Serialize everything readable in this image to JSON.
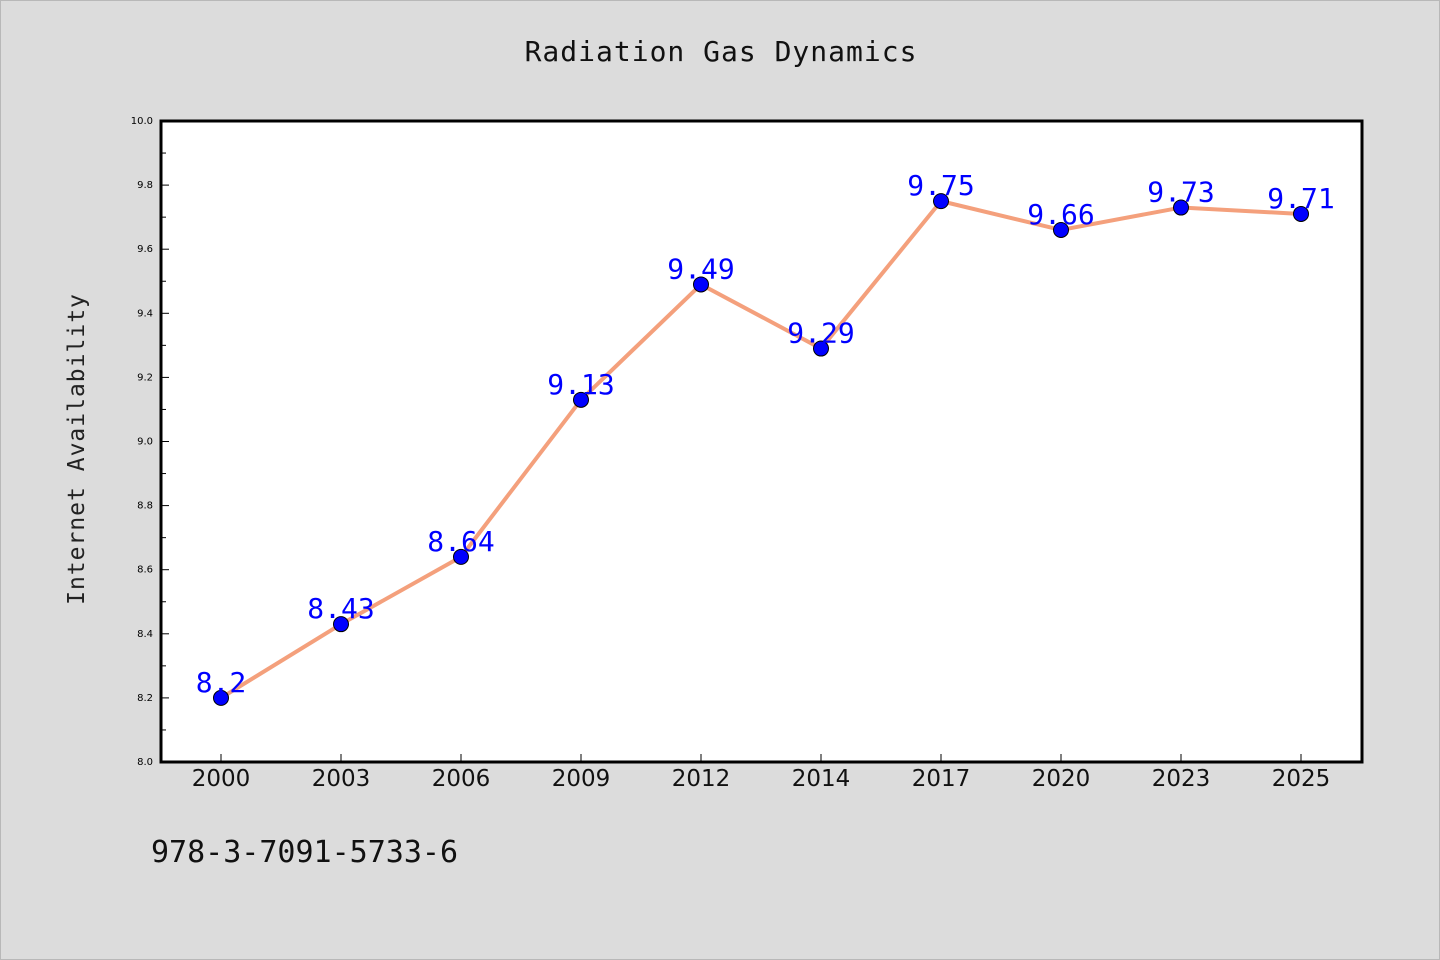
{
  "chart_data": {
    "type": "line",
    "title": "Radiation Gas Dynamics",
    "xlabel": "",
    "ylabel": "Internet Availability",
    "categories": [
      "2000",
      "2003",
      "2006",
      "2009",
      "2012",
      "2014",
      "2017",
      "2020",
      "2023",
      "2025"
    ],
    "series": [
      {
        "values": [
          8.2,
          8.43,
          8.64,
          9.13,
          9.49,
          9.29,
          9.75,
          9.66,
          9.73,
          9.71
        ],
        "line_color": "#f4a07c",
        "marker_color": "#0000ff"
      }
    ],
    "data_labels": [
      "8.2",
      "8.43",
      "8.64",
      "9.13",
      "9.49",
      "9.29",
      "9.75",
      "9.66",
      "9.73",
      "9.71"
    ],
    "ylim": [
      8.0,
      10.0
    ],
    "yticks": [
      "8.0",
      "8.2",
      "8.4",
      "8.6",
      "8.8",
      "9.0",
      "9.2",
      "9.4",
      "9.6",
      "9.8",
      "10.0"
    ],
    "grid": false,
    "legend": "none",
    "label_color": "#0000ff",
    "plot_background": "#ffffff",
    "figure_background": "#dcdcdc"
  },
  "footer": {
    "isbn": "978-3-7091-5733-6"
  }
}
